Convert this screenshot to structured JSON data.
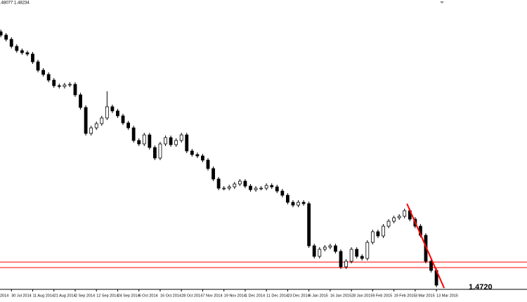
{
  "chart_data": {
    "type": "candlestick",
    "header": ".48077 1.48234",
    "price_label": "1.4720",
    "x": [
      4,
      6,
      8,
      10,
      12,
      14,
      16,
      18,
      20,
      22,
      24,
      26,
      28,
      30,
      32,
      34,
      36,
      38,
      40,
      42,
      44,
      46,
      48,
      50,
      52,
      54,
      56,
      58,
      60,
      62,
      64,
      66,
      68,
      70,
      72,
      74,
      76,
      78,
      80,
      82,
      84,
      86,
      88,
      90,
      92,
      94,
      96,
      98,
      100,
      102,
      104,
      106,
      108,
      110,
      112,
      114,
      116,
      118,
      120,
      122,
      124,
      126,
      128,
      130,
      132,
      134,
      136,
      138,
      140,
      142,
      144,
      146,
      148,
      150,
      152,
      154,
      156,
      158,
      160,
      162,
      164,
      166,
      168
    ],
    "open": [
      1.715,
      1.7118,
      1.7078,
      1.7011,
      1.6971,
      1.6951,
      1.6938,
      1.6864,
      1.6784,
      1.6744,
      1.669,
      1.6637,
      1.663,
      1.6644,
      1.665,
      1.655,
      1.643,
      1.6183,
      1.6236,
      1.6276,
      1.633,
      1.6437,
      1.6397,
      1.635,
      1.6283,
      1.6236,
      1.6116,
      1.6083,
      1.6169,
      1.6049,
      1.5949,
      1.6083,
      1.6143,
      1.6076,
      1.6116,
      1.6169,
      1.6016,
      1.5982,
      1.5969,
      1.5929,
      1.5849,
      1.5749,
      1.5662,
      1.5662,
      1.5675,
      1.5702,
      1.5729,
      1.5682,
      1.5648,
      1.5662,
      1.5662,
      1.5688,
      1.5675,
      1.5635,
      1.5595,
      1.5528,
      1.5501,
      1.5528,
      1.5515,
      1.5114,
      1.5014,
      1.5081,
      1.5101,
      1.5114,
      1.5061,
      1.4914,
      1.4967,
      1.5081,
      1.5014,
      1.4994,
      1.5147,
      1.5248,
      1.5208,
      1.5301,
      1.5348,
      1.5381,
      1.5395,
      1.5448,
      1.5368,
      1.5301,
      1.5214,
      1.4967,
      1.488
    ],
    "high": [
      1.717,
      1.7138,
      1.7098,
      1.7031,
      1.6991,
      1.6971,
      1.6958,
      1.6884,
      1.6804,
      1.6764,
      1.671,
      1.6657,
      1.6664,
      1.667,
      1.667,
      1.657,
      1.645,
      1.6256,
      1.6296,
      1.635,
      1.6584,
      1.6457,
      1.6417,
      1.637,
      1.6303,
      1.6256,
      1.6136,
      1.6189,
      1.6189,
      1.6069,
      1.6103,
      1.6163,
      1.6163,
      1.6136,
      1.6189,
      1.6189,
      1.6036,
      1.6002,
      1.5989,
      1.5949,
      1.5869,
      1.5769,
      1.5682,
      1.5695,
      1.5722,
      1.5749,
      1.5749,
      1.5702,
      1.5682,
      1.5682,
      1.5708,
      1.5708,
      1.5695,
      1.5655,
      1.5615,
      1.5548,
      1.5548,
      1.5548,
      1.5535,
      1.5134,
      1.5101,
      1.5121,
      1.5134,
      1.5134,
      1.5081,
      1.4987,
      1.5101,
      1.5101,
      1.5034,
      1.5167,
      1.5268,
      1.5268,
      1.5321,
      1.5368,
      1.5401,
      1.5415,
      1.5468,
      1.5468,
      1.5388,
      1.5321,
      1.5234,
      1.4987,
      1.49
    ],
    "low": [
      1.7098,
      1.7058,
      1.6991,
      1.6951,
      1.6931,
      1.6918,
      1.6844,
      1.6764,
      1.6724,
      1.667,
      1.6617,
      1.661,
      1.661,
      1.6624,
      1.653,
      1.641,
      1.6163,
      1.6163,
      1.6216,
      1.6256,
      1.631,
      1.6377,
      1.633,
      1.6263,
      1.6216,
      1.6096,
      1.6063,
      1.6063,
      1.6029,
      1.5929,
      1.5929,
      1.6063,
      1.6056,
      1.6056,
      1.6096,
      1.5996,
      1.5962,
      1.5949,
      1.5909,
      1.5829,
      1.5729,
      1.5642,
      1.5642,
      1.5642,
      1.5655,
      1.5682,
      1.5662,
      1.5628,
      1.5628,
      1.5642,
      1.5642,
      1.5655,
      1.5615,
      1.5575,
      1.5508,
      1.5481,
      1.5481,
      1.5495,
      1.5094,
      1.4994,
      1.4994,
      1.5061,
      1.5081,
      1.5041,
      1.4894,
      1.4894,
      1.4947,
      1.4994,
      1.4974,
      1.4974,
      1.5127,
      1.5188,
      1.5188,
      1.5281,
      1.5328,
      1.5361,
      1.5375,
      1.5348,
      1.5281,
      1.5194,
      1.4947,
      1.486,
      1.472
    ],
    "close": [
      1.7118,
      1.7078,
      1.7011,
      1.6971,
      1.6951,
      1.6938,
      1.6864,
      1.6784,
      1.6744,
      1.669,
      1.6637,
      1.663,
      1.6644,
      1.665,
      1.655,
      1.643,
      1.6183,
      1.6236,
      1.6276,
      1.633,
      1.6437,
      1.6397,
      1.635,
      1.6283,
      1.6236,
      1.6116,
      1.6083,
      1.6169,
      1.6049,
      1.5949,
      1.6083,
      1.6143,
      1.6076,
      1.6116,
      1.6169,
      1.6016,
      1.5982,
      1.5969,
      1.5929,
      1.5849,
      1.5749,
      1.5662,
      1.5662,
      1.5675,
      1.5702,
      1.5729,
      1.5682,
      1.5648,
      1.5662,
      1.5662,
      1.5688,
      1.5675,
      1.5635,
      1.5595,
      1.5528,
      1.5501,
      1.5528,
      1.5515,
      1.5114,
      1.5014,
      1.5081,
      1.5101,
      1.5114,
      1.5061,
      1.4914,
      1.4967,
      1.5081,
      1.5014,
      1.4994,
      1.5147,
      1.5248,
      1.5208,
      1.5301,
      1.5348,
      1.5381,
      1.5395,
      1.5448,
      1.5368,
      1.5301,
      1.5214,
      1.4967,
      1.488,
      1.474
    ],
    "up_color": "#ffffff",
    "down_color": "#000000",
    "edge_color": "#000000",
    "hlines": [
      1.496,
      1.4907
    ],
    "line_color": "#ff0000",
    "trendline": {
      "x": [
        156.9,
        170.9
      ],
      "y": [
        1.5515,
        1.4713
      ]
    },
    "xlim": [
      3.7,
      202.1
    ],
    "ylim": [
      1.47,
      1.7452
    ],
    "xticks": [
      {
        "value": 0,
        "label": "2014"
      },
      {
        "value": 8,
        "label": "30 Jul 2014"
      },
      {
        "value": 16,
        "label": "11 Aug 2014"
      },
      {
        "value": 24,
        "label": "21 Aug 2014"
      },
      {
        "value": 32,
        "label": "2 Sep 2014"
      },
      {
        "value": 40,
        "label": "12 Sep 2014"
      },
      {
        "value": 48,
        "label": "24 Sep 2014"
      },
      {
        "value": 56,
        "label": "6 Oct 2014"
      },
      {
        "value": 64,
        "label": "16 Oct 2014"
      },
      {
        "value": 72,
        "label": "28 Oct 2014"
      },
      {
        "value": 80,
        "label": "7 Nov 2014"
      },
      {
        "value": 88,
        "label": "19 Nov 2014"
      },
      {
        "value": 96,
        "label": "1 Dec 2014"
      },
      {
        "value": 104,
        "label": "11 Dec 2014"
      },
      {
        "value": 112,
        "label": "23 Dec 2014"
      },
      {
        "value": 120,
        "label": "6 Jan 2015"
      },
      {
        "value": 128,
        "label": "16 Jan 2015"
      },
      {
        "value": 136,
        "label": "28 Jan 2015"
      },
      {
        "value": 144,
        "label": "9 Feb 2015"
      },
      {
        "value": 152,
        "label": "19 Feb 2015"
      },
      {
        "value": 160,
        "label": "3 Mar 2015"
      },
      {
        "value": 168,
        "label": "13 Mar 2015"
      }
    ]
  }
}
